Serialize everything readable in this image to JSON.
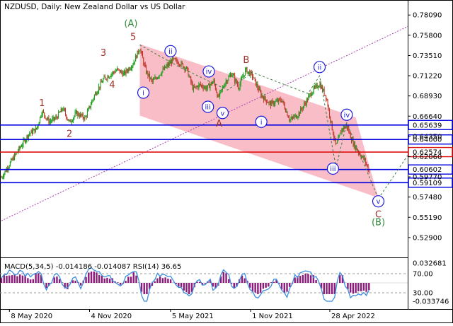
{
  "header": {
    "symbol_line": "NZDUSD, Daily:  New Zealand Dollar vs US Dollar"
  },
  "indicator": {
    "label": "MACD(5,34,5) -0.014186 -0.014087 RSI(14) 36.65"
  },
  "colors": {
    "background": "#ffffff",
    "up_candle": "#1a9e1a",
    "down_candle": "#c0392b",
    "channel_fill": "#f7b6c1",
    "blue_level": "#0000e0",
    "red_level": "#e01010",
    "wave_label_brown": "#a0302a",
    "wave_label_green": "#2e8b3a",
    "wave_label_blue": "#1a1adc",
    "macd_hist": "#8b1a7a",
    "rsi_line": "#3b8de0",
    "trendline_purple": "#b040b0"
  },
  "chart_data": {
    "type": "candlestick",
    "title": "NZDUSD, Daily:  New Zealand Dollar vs US Dollar",
    "x_tick_labels": [
      "8 May 2020",
      "4 Nov 2020",
      "5 May 2021",
      "1 Nov 2021",
      "28 Apr 2022"
    ],
    "x_tick_dates": [
      "2020-05-08",
      "2020-11-04",
      "2021-05-05",
      "2021-11-01",
      "2022-04-28"
    ],
    "x_range": [
      "2020-04-20",
      "2022-10-20"
    ],
    "y_tick_labels": [
      "0.78090",
      "0.75800",
      "0.73510",
      "0.71220",
      "0.68930",
      "0.66640",
      "0.64350",
      "0.62060",
      "0.59770",
      "0.57480",
      "0.55190",
      "0.52900"
    ],
    "y_range": [
      0.5065,
      0.7915
    ],
    "price_path": [
      [
        "2020-04-20",
        0.597
      ],
      [
        "2020-05-08",
        0.612
      ],
      [
        "2020-06-01",
        0.631
      ],
      [
        "2020-06-20",
        0.646
      ],
      [
        "2020-07-08",
        0.652
      ],
      [
        "2020-07-20",
        0.672
      ],
      [
        "2020-08-05",
        0.66
      ],
      [
        "2020-08-20",
        0.664
      ],
      [
        "2020-09-05",
        0.675
      ],
      [
        "2020-09-20",
        0.659
      ],
      [
        "2020-10-05",
        0.67
      ],
      [
        "2020-10-25",
        0.664
      ],
      [
        "2020-11-15",
        0.69
      ],
      [
        "2020-12-05",
        0.708
      ],
      [
        "2020-12-22",
        0.714
      ],
      [
        "2021-01-05",
        0.719
      ],
      [
        "2021-01-20",
        0.714
      ],
      [
        "2021-02-10",
        0.726
      ],
      [
        "2021-02-25",
        0.744
      ],
      [
        "2021-03-10",
        0.718
      ],
      [
        "2021-03-25",
        0.705
      ],
      [
        "2021-04-10",
        0.714
      ],
      [
        "2021-04-25",
        0.722
      ],
      [
        "2021-05-10",
        0.73
      ],
      [
        "2021-05-25",
        0.727
      ],
      [
        "2021-06-10",
        0.72
      ],
      [
        "2021-06-25",
        0.697
      ],
      [
        "2021-07-10",
        0.702
      ],
      [
        "2021-07-25",
        0.698
      ],
      [
        "2021-08-10",
        0.706
      ],
      [
        "2021-08-20",
        0.687
      ],
      [
        "2021-09-05",
        0.705
      ],
      [
        "2021-09-20",
        0.715
      ],
      [
        "2021-10-05",
        0.699
      ],
      [
        "2021-10-21",
        0.719
      ],
      [
        "2021-11-05",
        0.712
      ],
      [
        "2021-11-25",
        0.69
      ],
      [
        "2021-12-15",
        0.68
      ],
      [
        "2022-01-10",
        0.685
      ],
      [
        "2022-01-28",
        0.662
      ],
      [
        "2022-02-15",
        0.668
      ],
      [
        "2022-03-01",
        0.679
      ],
      [
        "2022-03-20",
        0.695
      ],
      [
        "2022-04-05",
        0.703
      ],
      [
        "2022-04-20",
        0.688
      ],
      [
        "2022-05-05",
        0.648
      ],
      [
        "2022-05-12",
        0.632
      ],
      [
        "2022-05-25",
        0.652
      ],
      [
        "2022-06-05",
        0.655
      ],
      [
        "2022-06-20",
        0.635
      ],
      [
        "2022-07-05",
        0.623
      ],
      [
        "2022-07-15",
        0.617
      ],
      [
        "2022-07-25",
        0.604
      ]
    ],
    "candle_count": 420,
    "channel": {
      "upper": [
        [
          "2021-02-25",
          0.748
        ],
        [
          "2022-06-25",
          0.665
        ]
      ],
      "lower": [
        [
          "2021-02-25",
          0.667
        ],
        [
          "2022-08-15",
          0.574
        ]
      ]
    },
    "horizontal_levels": [
      {
        "value": 0.65639,
        "label": "0.65639",
        "color": "blue"
      },
      {
        "value": 0.64,
        "label": "0.64000",
        "color": "blue"
      },
      {
        "value": 0.62574,
        "label": "0.62574",
        "color": "red"
      },
      {
        "value": 0.60602,
        "label": "0.60602",
        "color": "blue"
      },
      {
        "value": 0.59109,
        "label": "0.59109",
        "color": "blue"
      }
    ],
    "level_boxes": [
      "0.65639",
      "0.64000",
      "0.62574",
      "0.60602",
      "0.59109"
    ],
    "trendline": [
      [
        "2020-04-20",
        0.548
      ],
      [
        "2022-10-20",
        0.768
      ]
    ],
    "wave_path": [
      [
        "2021-02-25",
        0.747
      ],
      [
        "2021-05-25",
        0.722
      ],
      [
        "2021-09-10",
        0.696
      ],
      [
        "2021-11-05",
        0.716
      ],
      [
        "2022-03-10",
        0.692
      ],
      [
        "2022-04-05",
        0.712
      ],
      [
        "2022-05-12",
        0.608
      ],
      [
        "2022-06-05",
        0.659
      ],
      [
        "2022-08-15",
        0.573
      ]
    ],
    "projection": [
      [
        "2022-08-15",
        0.573
      ],
      [
        "2022-10-20",
        0.622
      ]
    ],
    "wave_labels": [
      {
        "text": "(A)",
        "date": "2021-02-05",
        "price": 0.771,
        "style": "green"
      },
      {
        "text": "5",
        "date": "2021-02-10",
        "price": 0.756,
        "style": "brown"
      },
      {
        "text": "3",
        "date": "2020-12-05",
        "price": 0.738,
        "style": "brown"
      },
      {
        "text": "4",
        "date": "2020-12-25",
        "price": 0.702,
        "style": "brown"
      },
      {
        "text": "1",
        "date": "2020-07-20",
        "price": 0.681,
        "style": "brown"
      },
      {
        "text": "2",
        "date": "2020-09-20",
        "price": 0.646,
        "style": "brown"
      },
      {
        "text": "B",
        "date": "2021-10-22",
        "price": 0.73,
        "style": "brown"
      },
      {
        "text": "A",
        "date": "2021-08-22",
        "price": 0.658,
        "style": "brown"
      },
      {
        "text": "C",
        "date": "2022-08-15",
        "price": 0.555,
        "style": "brown"
      },
      {
        "text": "(B)",
        "date": "2022-08-15",
        "price": 0.546,
        "style": "green"
      },
      {
        "text": "i",
        "date": "2021-03-05",
        "price": 0.693,
        "style": "blue-circle"
      },
      {
        "text": "ii",
        "date": "2021-05-05",
        "price": 0.74,
        "style": "blue-circle"
      },
      {
        "text": "iii",
        "date": "2021-07-28",
        "price": 0.677,
        "style": "blue-circle"
      },
      {
        "text": "iv",
        "date": "2021-07-30",
        "price": 0.717,
        "style": "blue-circle"
      },
      {
        "text": "v",
        "date": "2021-08-30",
        "price": 0.67,
        "style": "blue-circle"
      },
      {
        "text": "i",
        "date": "2021-11-25",
        "price": 0.66,
        "style": "blue-circle"
      },
      {
        "text": "ii",
        "date": "2022-04-05",
        "price": 0.722,
        "style": "blue-circle"
      },
      {
        "text": "iii",
        "date": "2022-05-05",
        "price": 0.607,
        "style": "blue-circle"
      },
      {
        "text": "iv",
        "date": "2022-06-05",
        "price": 0.668,
        "style": "blue-circle"
      },
      {
        "text": "v",
        "date": "2022-08-15",
        "price": 0.57,
        "style": "blue-circle"
      }
    ],
    "macd_rsi": {
      "label": "MACD(5,34,5) -0.014186 -0.014087 RSI(14) 36.65",
      "right_axis_labels": [
        "0.032681",
        "70.00",
        "30.00",
        "-0.033746"
      ],
      "macd_value": -0.014186,
      "signal_value": -0.014087,
      "rsi_value": 36.65
    }
  }
}
